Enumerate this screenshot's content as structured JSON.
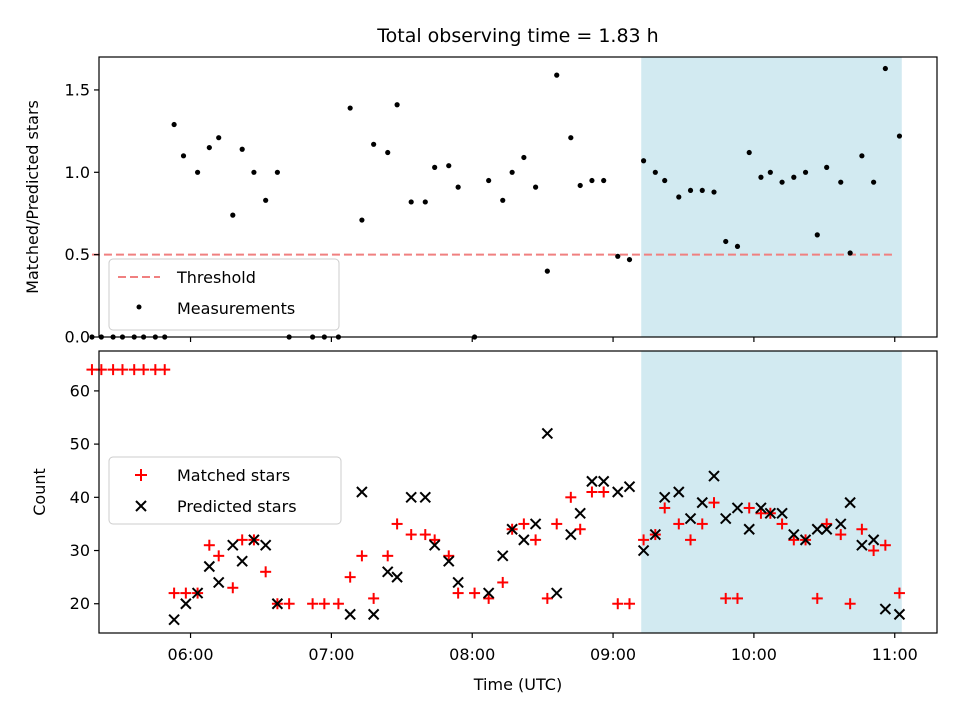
{
  "title": "Total observing time = 1.83 h",
  "xlabel": "Time (UTC)",
  "colors": {
    "measurement": "#000000",
    "threshold": "#f08080",
    "matched": "#ff0000",
    "predicted": "#000000",
    "shade": "#add8e6"
  },
  "chart_data": [
    {
      "type": "scatter",
      "ylabel": "Matched/Predicted stars",
      "ylim": [
        0,
        1.7
      ],
      "yticks": [
        "0.0",
        "0.5",
        "1.0",
        "1.5"
      ],
      "xticks": [
        "06:00",
        "07:00",
        "08:00",
        "09:00",
        "10:00",
        "11:00"
      ],
      "xlim": [
        "05:21",
        "11:18"
      ],
      "shaded_region": [
        "09:12",
        "11:03"
      ],
      "threshold": {
        "y": 0.5,
        "x": [
          "05:18",
          "11:00"
        ]
      },
      "legend": {
        "position": "lower left",
        "entries": [
          "Threshold",
          "Measurements"
        ]
      },
      "series": [
        {
          "name": "Measurements",
          "points": [
            [
              "05:18",
              0
            ],
            [
              "05:22",
              0
            ],
            [
              "05:27",
              0
            ],
            [
              "05:31",
              0
            ],
            [
              "05:36",
              0
            ],
            [
              "05:40",
              0
            ],
            [
              "05:45",
              0
            ],
            [
              "05:49",
              0
            ],
            [
              "05:53",
              1.29
            ],
            [
              "05:57",
              1.1
            ],
            [
              "06:03",
              1.0
            ],
            [
              "06:08",
              1.15
            ],
            [
              "06:12",
              1.21
            ],
            [
              "06:18",
              0.74
            ],
            [
              "06:22",
              1.14
            ],
            [
              "06:27",
              1.0
            ],
            [
              "06:32",
              0.83
            ],
            [
              "06:37",
              1.0
            ],
            [
              "06:42",
              0
            ],
            [
              "06:52",
              0
            ],
            [
              "06:57",
              0
            ],
            [
              "07:03",
              0
            ],
            [
              "07:08",
              1.39
            ],
            [
              "07:13",
              0.71
            ],
            [
              "07:18",
              1.17
            ],
            [
              "07:24",
              1.12
            ],
            [
              "07:28",
              1.41
            ],
            [
              "07:34",
              0.82
            ],
            [
              "07:40",
              0.82
            ],
            [
              "07:44",
              1.03
            ],
            [
              "07:50",
              1.04
            ],
            [
              "07:54",
              0.91
            ],
            [
              "08:01",
              0
            ],
            [
              "08:07",
              0.95
            ],
            [
              "08:13",
              0.83
            ],
            [
              "08:17",
              1.0
            ],
            [
              "08:22",
              1.09
            ],
            [
              "08:27",
              0.91
            ],
            [
              "08:32",
              0.4
            ],
            [
              "08:36",
              1.59
            ],
            [
              "08:42",
              1.21
            ],
            [
              "08:46",
              0.92
            ],
            [
              "08:51",
              0.95
            ],
            [
              "08:56",
              0.95
            ],
            [
              "09:02",
              0.49
            ],
            [
              "09:07",
              0.47
            ],
            [
              "09:13",
              1.07
            ],
            [
              "09:18",
              1.0
            ],
            [
              "09:22",
              0.95
            ],
            [
              "09:28",
              0.85
            ],
            [
              "09:33",
              0.89
            ],
            [
              "09:38",
              0.89
            ],
            [
              "09:43",
              0.88
            ],
            [
              "09:48",
              0.58
            ],
            [
              "09:53",
              0.55
            ],
            [
              "09:58",
              1.12
            ],
            [
              "10:03",
              0.97
            ],
            [
              "10:07",
              1.0
            ],
            [
              "10:12",
              0.94
            ],
            [
              "10:17",
              0.97
            ],
            [
              "10:22",
              1.0
            ],
            [
              "10:27",
              0.62
            ],
            [
              "10:31",
              1.03
            ],
            [
              "10:37",
              0.94
            ],
            [
              "10:41",
              0.51
            ],
            [
              "10:46",
              1.1
            ],
            [
              "10:51",
              0.94
            ],
            [
              "10:56",
              1.63
            ],
            [
              "11:02",
              1.22
            ]
          ]
        }
      ]
    },
    {
      "type": "scatter",
      "ylabel": "Count",
      "ylim": [
        14.5,
        67.5
      ],
      "yticks": [
        "20",
        "30",
        "40",
        "50",
        "60"
      ],
      "xticks": [
        "06:00",
        "07:00",
        "08:00",
        "09:00",
        "10:00",
        "11:00"
      ],
      "xlim": [
        "05:21",
        "11:18"
      ],
      "shaded_region": [
        "09:12",
        "11:03"
      ],
      "legend": {
        "position": "center left",
        "entries": [
          "Matched stars",
          "Predicted stars"
        ]
      },
      "series": [
        {
          "name": "Matched stars",
          "points": [
            [
              "05:18",
              64
            ],
            [
              "05:22",
              64
            ],
            [
              "05:27",
              64
            ],
            [
              "05:31",
              64
            ],
            [
              "05:36",
              64
            ],
            [
              "05:40",
              64
            ],
            [
              "05:45",
              64
            ],
            [
              "05:49",
              64
            ],
            [
              "05:53",
              22
            ],
            [
              "05:58",
              22
            ],
            [
              "06:03",
              22
            ],
            [
              "06:08",
              31
            ],
            [
              "06:12",
              29
            ],
            [
              "06:18",
              23
            ],
            [
              "06:22",
              32
            ],
            [
              "06:27",
              32
            ],
            [
              "06:32",
              26
            ],
            [
              "06:37",
              20
            ],
            [
              "06:42",
              20
            ],
            [
              "06:52",
              20
            ],
            [
              "06:57",
              20
            ],
            [
              "07:03",
              20
            ],
            [
              "07:08",
              25
            ],
            [
              "07:13",
              29
            ],
            [
              "07:18",
              21
            ],
            [
              "07:24",
              29
            ],
            [
              "07:28",
              35
            ],
            [
              "07:34",
              33
            ],
            [
              "07:40",
              33
            ],
            [
              "07:44",
              32
            ],
            [
              "07:50",
              29
            ],
            [
              "07:54",
              22
            ],
            [
              "08:01",
              22
            ],
            [
              "08:07",
              21
            ],
            [
              "08:13",
              24
            ],
            [
              "08:17",
              34
            ],
            [
              "08:22",
              35
            ],
            [
              "08:27",
              32
            ],
            [
              "08:32",
              21
            ],
            [
              "08:36",
              35
            ],
            [
              "08:42",
              40
            ],
            [
              "08:46",
              34
            ],
            [
              "08:51",
              41
            ],
            [
              "08:56",
              41
            ],
            [
              "09:02",
              20
            ],
            [
              "09:07",
              20
            ],
            [
              "09:13",
              32
            ],
            [
              "09:18",
              33
            ],
            [
              "09:22",
              38
            ],
            [
              "09:28",
              35
            ],
            [
              "09:33",
              32
            ],
            [
              "09:38",
              35
            ],
            [
              "09:43",
              39
            ],
            [
              "09:48",
              21
            ],
            [
              "09:53",
              21
            ],
            [
              "09:58",
              38
            ],
            [
              "10:03",
              37
            ],
            [
              "10:07",
              37
            ],
            [
              "10:12",
              35
            ],
            [
              "10:17",
              32
            ],
            [
              "10:22",
              32
            ],
            [
              "10:27",
              21
            ],
            [
              "10:31",
              35
            ],
            [
              "10:37",
              33
            ],
            [
              "10:41",
              20
            ],
            [
              "10:46",
              34
            ],
            [
              "10:51",
              30
            ],
            [
              "10:56",
              31
            ],
            [
              "11:02",
              22
            ]
          ]
        },
        {
          "name": "Predicted stars",
          "points": [
            [
              "05:53",
              17
            ],
            [
              "05:58",
              20
            ],
            [
              "06:03",
              22
            ],
            [
              "06:08",
              27
            ],
            [
              "06:12",
              24
            ],
            [
              "06:18",
              31
            ],
            [
              "06:22",
              28
            ],
            [
              "06:27",
              32
            ],
            [
              "06:32",
              31
            ],
            [
              "06:37",
              20
            ],
            [
              "07:08",
              18
            ],
            [
              "07:13",
              41
            ],
            [
              "07:18",
              18
            ],
            [
              "07:24",
              26
            ],
            [
              "07:28",
              25
            ],
            [
              "07:34",
              40
            ],
            [
              "07:40",
              40
            ],
            [
              "07:44",
              31
            ],
            [
              "07:50",
              28
            ],
            [
              "07:54",
              24
            ],
            [
              "08:07",
              22
            ],
            [
              "08:13",
              29
            ],
            [
              "08:17",
              34
            ],
            [
              "08:22",
              32
            ],
            [
              "08:27",
              35
            ],
            [
              "08:32",
              52
            ],
            [
              "08:36",
              22
            ],
            [
              "08:42",
              33
            ],
            [
              "08:46",
              37
            ],
            [
              "08:51",
              43
            ],
            [
              "08:56",
              43
            ],
            [
              "09:02",
              41
            ],
            [
              "09:07",
              42
            ],
            [
              "09:13",
              30
            ],
            [
              "09:18",
              33
            ],
            [
              "09:22",
              40
            ],
            [
              "09:28",
              41
            ],
            [
              "09:33",
              36
            ],
            [
              "09:38",
              39
            ],
            [
              "09:43",
              44
            ],
            [
              "09:48",
              36
            ],
            [
              "09:53",
              38
            ],
            [
              "09:58",
              34
            ],
            [
              "10:03",
              38
            ],
            [
              "10:07",
              37
            ],
            [
              "10:12",
              37
            ],
            [
              "10:17",
              33
            ],
            [
              "10:22",
              32
            ],
            [
              "10:27",
              34
            ],
            [
              "10:31",
              34
            ],
            [
              "10:37",
              35
            ],
            [
              "10:41",
              39
            ],
            [
              "10:46",
              31
            ],
            [
              "10:51",
              32
            ],
            [
              "10:56",
              19
            ],
            [
              "11:02",
              18
            ]
          ]
        }
      ]
    }
  ]
}
